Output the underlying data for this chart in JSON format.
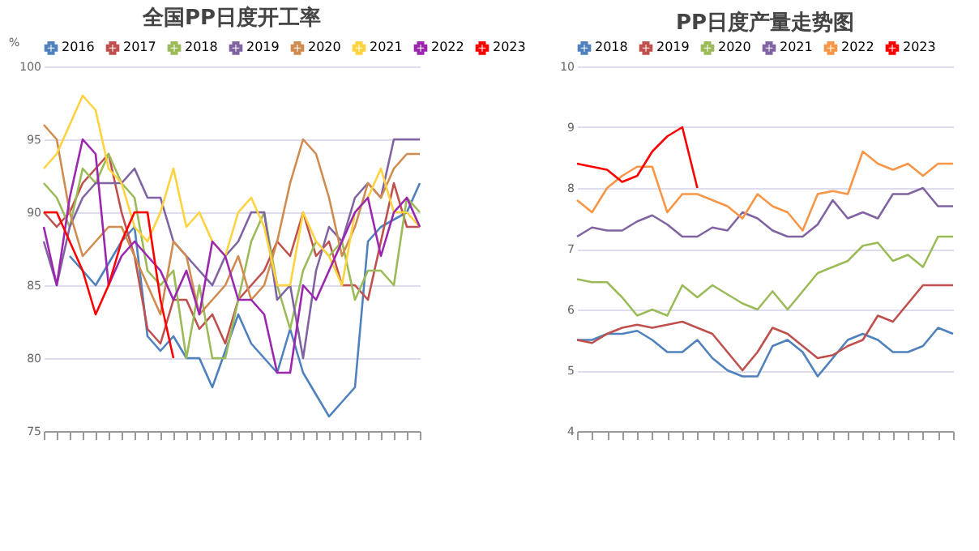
{
  "chart_data": [
    {
      "type": "line",
      "title": "全国PP日度开工率",
      "ylabel": "%",
      "categories": [
        null,
        null,
        null,
        null,
        null,
        null,
        null,
        null,
        null,
        null,
        null,
        null,
        null,
        null,
        null,
        null,
        null,
        null,
        null,
        null,
        null,
        null,
        null,
        null,
        null,
        null,
        null,
        null,
        null,
        null
      ],
      "ylim": [
        75,
        100
      ],
      "yticks": [
        75,
        80,
        85,
        90,
        95,
        100
      ],
      "grid": "y",
      "legend": "top",
      "marker": "none",
      "line_style": "solid",
      "tick_labels": "y",
      "series": [
        {
          "name": "2016",
          "color": "#4f81bd",
          "values": [
            null,
            null,
            87,
            86,
            85,
            86.5,
            88,
            89,
            81.5,
            80.5,
            81.5,
            80,
            80,
            78,
            80.5,
            83,
            81,
            80,
            79,
            82,
            79,
            77.5,
            76,
            77,
            78,
            88,
            89,
            89.5,
            90,
            92
          ]
        },
        {
          "name": "2017",
          "color": "#c0504d",
          "values": [
            90,
            89,
            90,
            92,
            93,
            94,
            90,
            87,
            82,
            81,
            84,
            84,
            82,
            83,
            81,
            84,
            85,
            86,
            88,
            87,
            90,
            87,
            88,
            85,
            85,
            84,
            88,
            92,
            89,
            89
          ]
        },
        {
          "name": "2018",
          "color": "#9bbb59",
          "values": [
            92,
            91,
            89,
            93,
            92,
            94,
            92,
            91,
            86,
            85,
            86,
            80,
            85,
            80,
            80,
            84,
            88,
            90,
            85,
            82,
            86,
            88,
            87,
            88,
            84,
            86,
            86,
            85,
            91,
            90
          ]
        },
        {
          "name": "2019",
          "color": "#8064a2",
          "values": [
            88,
            85,
            89,
            91,
            92,
            92,
            92,
            93,
            91,
            91,
            88,
            87,
            86,
            85,
            87,
            88,
            90,
            90,
            84,
            85,
            80,
            86,
            89,
            88,
            91,
            92,
            91,
            95,
            95,
            95
          ]
        },
        {
          "name": "2020",
          "color": "#d08b4f",
          "values": [
            96,
            95,
            90,
            87,
            88,
            89,
            89,
            87,
            85,
            83,
            88,
            87,
            83,
            84,
            85,
            87,
            84,
            85,
            88,
            92,
            95,
            94,
            91,
            87,
            89,
            92,
            91,
            93,
            94,
            94
          ]
        },
        {
          "name": "2021",
          "color": "#ffd23f",
          "values": [
            93,
            94,
            96,
            98,
            97,
            93,
            92,
            89,
            88,
            90,
            93,
            89,
            90,
            88,
            87,
            90,
            91,
            89,
            85,
            85,
            90,
            88,
            87,
            85,
            90,
            91,
            93,
            90,
            90,
            89
          ]
        },
        {
          "name": "2022",
          "color": "#9b27af",
          "values": [
            89,
            85,
            91,
            95,
            94,
            85,
            87,
            88,
            87,
            86,
            84,
            86,
            83,
            88,
            87,
            84,
            84,
            83,
            79,
            79,
            85,
            84,
            86,
            88,
            90,
            91,
            87,
            90,
            91,
            89
          ]
        },
        {
          "name": "2023",
          "color": "#ff0000",
          "values": [
            90,
            90,
            88,
            86,
            83,
            85,
            88,
            90,
            90,
            84,
            80,
            null,
            null,
            null,
            null,
            null,
            null,
            null,
            null,
            null,
            null,
            null,
            null,
            null,
            null,
            null,
            null,
            null,
            null,
            null
          ]
        }
      ]
    },
    {
      "type": "line",
      "title": "PP日度产量走势图",
      "categories": [
        null,
        null,
        null,
        null,
        null,
        null,
        null,
        null,
        null,
        null,
        null,
        null,
        null,
        null,
        null,
        null,
        null,
        null,
        null,
        null,
        null,
        null,
        null,
        null,
        null,
        null
      ],
      "ylim": [
        4,
        10
      ],
      "yticks": [
        4,
        5,
        6,
        7,
        8,
        9,
        10
      ],
      "grid": "y",
      "legend": "top",
      "marker": "none",
      "line_style": "solid",
      "tick_labels": "y",
      "series": [
        {
          "name": "2018",
          "color": "#4f81bd",
          "values": [
            5.5,
            5.5,
            5.6,
            5.6,
            5.65,
            5.5,
            5.3,
            5.3,
            5.5,
            5.2,
            5.0,
            4.9,
            4.9,
            5.4,
            5.5,
            5.3,
            4.9,
            5.2,
            5.5,
            5.6,
            5.5,
            5.3,
            5.3,
            5.4,
            5.7,
            5.6
          ]
        },
        {
          "name": "2019",
          "color": "#c0504d",
          "values": [
            5.5,
            5.45,
            5.6,
            5.7,
            5.75,
            5.7,
            5.75,
            5.8,
            5.7,
            5.6,
            5.3,
            5.0,
            5.3,
            5.7,
            5.6,
            5.4,
            5.2,
            5.25,
            5.4,
            5.5,
            5.9,
            5.8,
            6.1,
            6.4,
            6.4,
            6.4
          ]
        },
        {
          "name": "2020",
          "color": "#9bbb59",
          "values": [
            6.5,
            6.45,
            6.45,
            6.2,
            5.9,
            6.0,
            5.9,
            6.4,
            6.2,
            6.4,
            6.25,
            6.1,
            6.0,
            6.3,
            6.0,
            6.3,
            6.6,
            6.7,
            6.8,
            7.05,
            7.1,
            6.8,
            6.9,
            6.7,
            7.2,
            7.2
          ]
        },
        {
          "name": "2021",
          "color": "#8064a2",
          "values": [
            7.2,
            7.35,
            7.3,
            7.3,
            7.45,
            7.55,
            7.4,
            7.2,
            7.2,
            7.35,
            7.3,
            7.6,
            7.5,
            7.3,
            7.2,
            7.2,
            7.4,
            7.8,
            7.5,
            7.6,
            7.5,
            7.9,
            7.9,
            8.0,
            7.7,
            7.7
          ]
        },
        {
          "name": "2022",
          "color": "#f79646",
          "values": [
            7.8,
            7.6,
            8.0,
            8.2,
            8.35,
            8.35,
            7.6,
            7.9,
            7.9,
            7.8,
            7.7,
            7.5,
            7.9,
            7.7,
            7.6,
            7.3,
            7.9,
            7.95,
            7.9,
            8.6,
            8.4,
            8.3,
            8.4,
            8.2,
            8.4,
            8.4
          ]
        },
        {
          "name": "2023",
          "color": "#ff0000",
          "values": [
            8.4,
            8.35,
            8.3,
            8.1,
            8.2,
            8.6,
            8.85,
            9.0,
            8.0,
            null,
            null,
            null,
            null,
            null,
            null,
            null,
            null,
            null,
            null,
            null,
            null,
            null,
            null,
            null,
            null,
            null
          ]
        }
      ]
    }
  ]
}
